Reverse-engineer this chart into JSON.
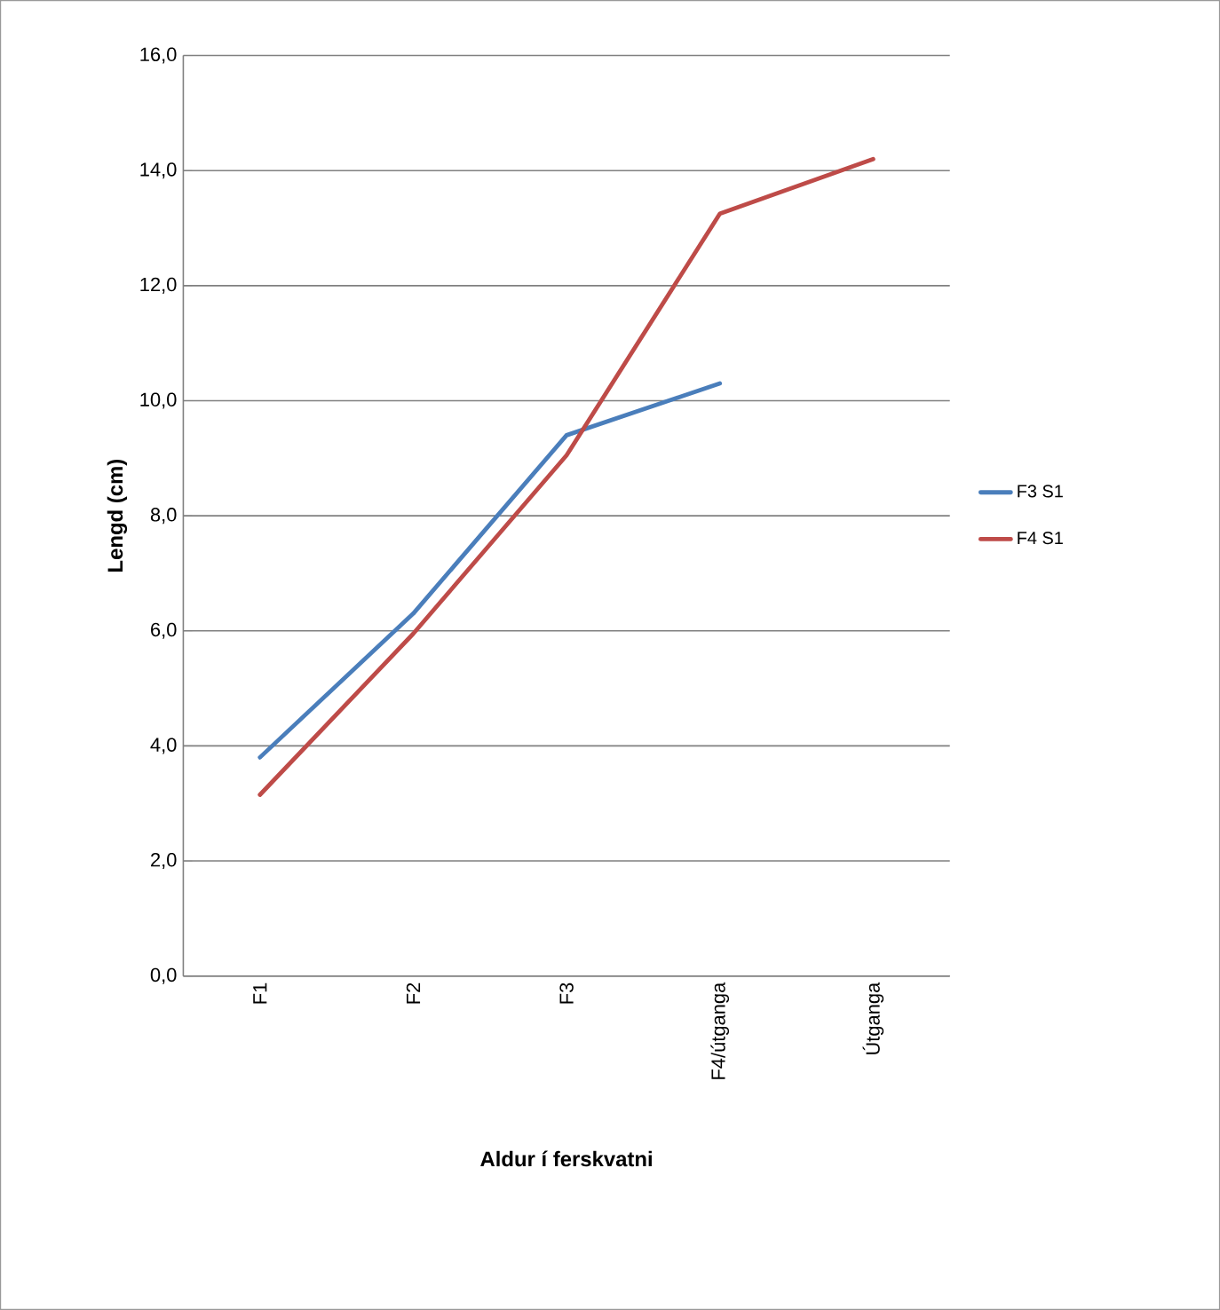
{
  "chart_data": {
    "type": "line",
    "xlabel": "Aldur í ferskvatni",
    "ylabel": "Lengd (cm)",
    "categories": [
      "F1",
      "F2",
      "F3",
      "F4/útganga",
      "Útganga"
    ],
    "series": [
      {
        "name": "F3 S1",
        "color": "#4a7ebb",
        "values": [
          3.8,
          6.3,
          9.4,
          10.3,
          null
        ]
      },
      {
        "name": "F4 S1",
        "color": "#be4b48",
        "values": [
          3.15,
          5.95,
          9.05,
          13.25,
          14.2
        ]
      }
    ],
    "ylim": [
      0,
      16
    ],
    "yticks": [
      {
        "value": 0,
        "label": "0,0"
      },
      {
        "value": 2,
        "label": "2,0"
      },
      {
        "value": 4,
        "label": "4,0"
      },
      {
        "value": 6,
        "label": "6,0"
      },
      {
        "value": 8,
        "label": "8,0"
      },
      {
        "value": 10,
        "label": "10,0"
      },
      {
        "value": 12,
        "label": "12,0"
      },
      {
        "value": 14,
        "label": "14,0"
      },
      {
        "value": 16,
        "label": "16,0"
      }
    ],
    "grid": "y",
    "legend": "right",
    "marker": "none",
    "line_style": "solid"
  }
}
